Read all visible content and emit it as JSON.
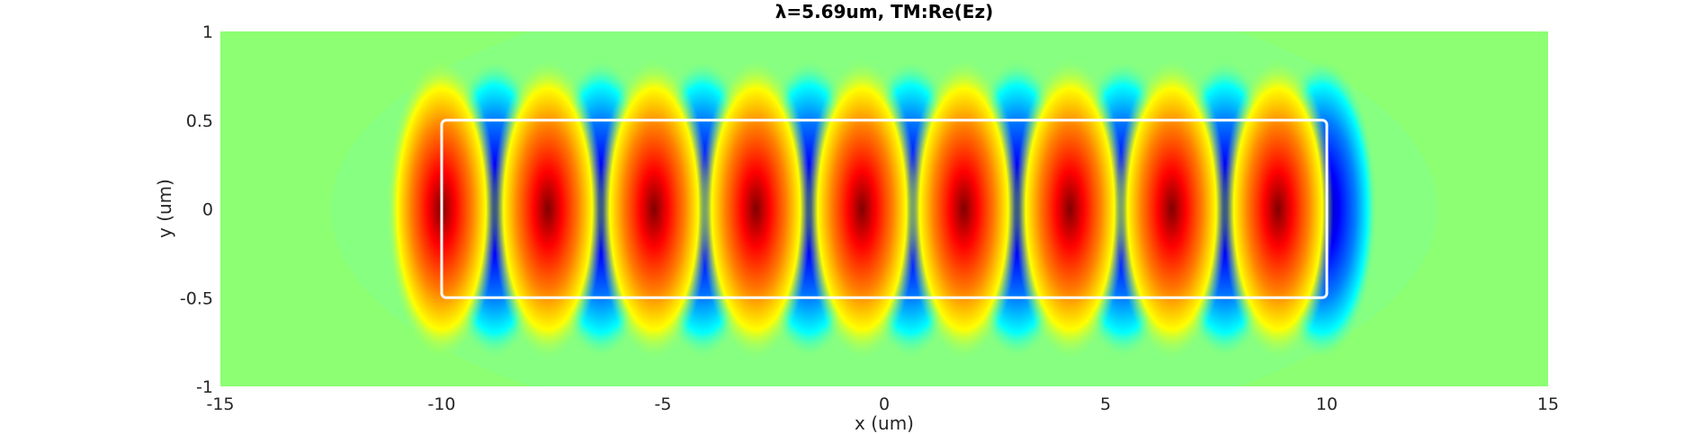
{
  "chart_data": {
    "type": "heatmap",
    "title": "λ=5.69um,  TM:Re(Ez)",
    "xlabel": "x (um)",
    "ylabel": "y (um)",
    "xlim": [
      -15,
      15
    ],
    "ylim": [
      -1,
      1
    ],
    "x_ticks": [
      -15,
      -10,
      -5,
      0,
      5,
      10,
      15
    ],
    "x_tick_labels": [
      "-15",
      "-10",
      "-5",
      "0",
      "5",
      "10",
      "15"
    ],
    "y_ticks": [
      1,
      0.5,
      0,
      -0.5,
      -1
    ],
    "y_tick_labels": [
      "1",
      "0.5",
      "0",
      "-0.5",
      "-1"
    ],
    "colormap": "jet",
    "background_color": "#8cff73",
    "waveguide_outline": {
      "x_range": [
        -10,
        10
      ],
      "y_range": [
        -0.5,
        0.5
      ],
      "color": "#ffffff"
    },
    "field_pattern": {
      "description_free": true,
      "positive_lobes_x": [
        -10,
        -7.6,
        -5.2,
        -2.9,
        -0.5,
        1.8,
        4.2,
        6.5,
        8.9
      ],
      "negative_lobes_x": [
        -8.8,
        -6.4,
        -4.1,
        -1.7,
        0.6,
        3.0,
        5.4,
        7.7,
        9.9
      ],
      "lobe_amplitude": 1
    },
    "grid": false
  }
}
